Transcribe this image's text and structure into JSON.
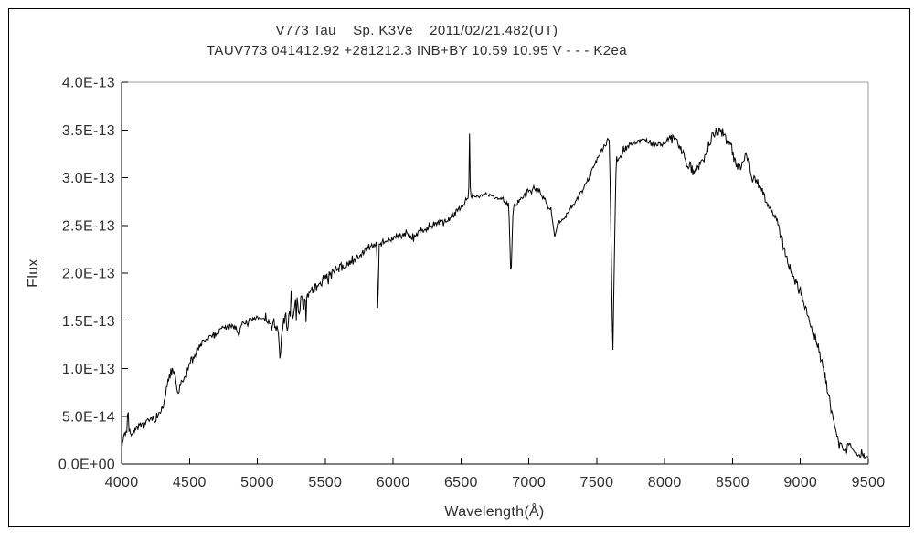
{
  "titles": {
    "line1": "V773 Tau    Sp. K3Ve    2011/02/21.482(UT)",
    "line2": "TAUV773 041412.92 +281212.3 INB+BY 10.59 10.95 V - - - K2ea"
  },
  "colors": {
    "spectrum_line": "#000000",
    "axis_black": "#000000",
    "frame_gray": "#9c9c9c",
    "text": "#2e2e2e",
    "background": "#ffffff"
  },
  "chart_data": {
    "type": "line",
    "title": "V773 Tau  Sp. K3Ve  2011/02/21.482(UT)",
    "subtitle": "TAUV773 041412.92 +281212.3 INB+BY 10.59 10.95 V - - - K2ea",
    "xlabel": "Wavelength(Å)",
    "ylabel": "Flux",
    "xlim": [
      4000,
      9500
    ],
    "ylim": [
      0,
      4e-13
    ],
    "grid": false,
    "legend": "none",
    "x_ticks": [
      4000,
      4500,
      5000,
      5500,
      6000,
      6500,
      7000,
      7500,
      8000,
      8500,
      9000,
      9500
    ],
    "y_ticks": [
      {
        "value": 0.0,
        "label": "0.0E+00"
      },
      {
        "value": 0.5,
        "label": "5.0E-14"
      },
      {
        "value": 1.0,
        "label": "1.0E-13"
      },
      {
        "value": 1.5,
        "label": "1.5E-13"
      },
      {
        "value": 2.0,
        "label": "2.0E-13"
      },
      {
        "value": 2.5,
        "label": "2.5E-13"
      },
      {
        "value": 3.0,
        "label": "3.0E-13"
      },
      {
        "value": 3.5,
        "label": "3.5E-13"
      },
      {
        "value": 4.0,
        "label": "4.0E-13"
      }
    ],
    "flux_scale": 1e-13,
    "envelope": [
      [
        4000,
        0.15
      ],
      [
        4015,
        0.3
      ],
      [
        4035,
        0.33
      ],
      [
        4060,
        0.33
      ],
      [
        4080,
        0.32
      ],
      [
        4100,
        0.36
      ],
      [
        4130,
        0.38
      ],
      [
        4160,
        0.42
      ],
      [
        4200,
        0.46
      ],
      [
        4240,
        0.47
      ],
      [
        4280,
        0.52
      ],
      [
        4310,
        0.62
      ],
      [
        4340,
        0.85
      ],
      [
        4365,
        0.97
      ],
      [
        4390,
        0.95
      ],
      [
        4415,
        0.72
      ],
      [
        4440,
        0.84
      ],
      [
        4470,
        0.92
      ],
      [
        4500,
        1.05
      ],
      [
        4540,
        1.15
      ],
      [
        4580,
        1.24
      ],
      [
        4620,
        1.3
      ],
      [
        4660,
        1.34
      ],
      [
        4700,
        1.37
      ],
      [
        4740,
        1.41
      ],
      [
        4780,
        1.44
      ],
      [
        4830,
        1.45
      ],
      [
        4861,
        1.38
      ],
      [
        4890,
        1.46
      ],
      [
        4930,
        1.49
      ],
      [
        4970,
        1.51
      ],
      [
        5010,
        1.53
      ],
      [
        5050,
        1.52
      ],
      [
        5090,
        1.48
      ],
      [
        5130,
        1.42
      ],
      [
        5160,
        1.38
      ],
      [
        5200,
        1.47
      ],
      [
        5240,
        1.56
      ],
      [
        5280,
        1.62
      ],
      [
        5320,
        1.68
      ],
      [
        5360,
        1.74
      ],
      [
        5400,
        1.8
      ],
      [
        5450,
        1.88
      ],
      [
        5500,
        1.95
      ],
      [
        5550,
        2.0
      ],
      [
        5600,
        2.05
      ],
      [
        5650,
        2.08
      ],
      [
        5700,
        2.12
      ],
      [
        5750,
        2.18
      ],
      [
        5800,
        2.24
      ],
      [
        5850,
        2.29
      ],
      [
        5900,
        2.32
      ],
      [
        5950,
        2.33
      ],
      [
        6000,
        2.36
      ],
      [
        6050,
        2.4
      ],
      [
        6100,
        2.42
      ],
      [
        6150,
        2.38
      ],
      [
        6200,
        2.44
      ],
      [
        6250,
        2.47
      ],
      [
        6300,
        2.5
      ],
      [
        6350,
        2.52
      ],
      [
        6400,
        2.55
      ],
      [
        6450,
        2.62
      ],
      [
        6500,
        2.7
      ],
      [
        6540,
        2.77
      ],
      [
        6580,
        2.8
      ],
      [
        6620,
        2.81
      ],
      [
        6660,
        2.82
      ],
      [
        6700,
        2.82
      ],
      [
        6750,
        2.8
      ],
      [
        6800,
        2.77
      ],
      [
        6850,
        2.72
      ],
      [
        6900,
        2.7
      ],
      [
        6950,
        2.8
      ],
      [
        7000,
        2.86
      ],
      [
        7040,
        2.9
      ],
      [
        7080,
        2.84
      ],
      [
        7120,
        2.76
      ],
      [
        7160,
        2.66
      ],
      [
        7200,
        2.55
      ],
      [
        7240,
        2.55
      ],
      [
        7280,
        2.62
      ],
      [
        7320,
        2.7
      ],
      [
        7360,
        2.79
      ],
      [
        7400,
        2.89
      ],
      [
        7440,
        3.0
      ],
      [
        7480,
        3.12
      ],
      [
        7520,
        3.24
      ],
      [
        7560,
        3.34
      ],
      [
        7590,
        3.4
      ],
      [
        7620,
        3.32
      ],
      [
        7650,
        3.18
      ],
      [
        7680,
        3.22
      ],
      [
        7710,
        3.3
      ],
      [
        7750,
        3.35
      ],
      [
        7800,
        3.38
      ],
      [
        7850,
        3.4
      ],
      [
        7900,
        3.36
      ],
      [
        7950,
        3.34
      ],
      [
        8000,
        3.36
      ],
      [
        8050,
        3.44
      ],
      [
        8090,
        3.4
      ],
      [
        8130,
        3.28
      ],
      [
        8170,
        3.15
      ],
      [
        8210,
        3.05
      ],
      [
        8250,
        3.14
      ],
      [
        8300,
        3.24
      ],
      [
        8350,
        3.44
      ],
      [
        8400,
        3.5
      ],
      [
        8440,
        3.45
      ],
      [
        8480,
        3.35
      ],
      [
        8520,
        3.18
      ],
      [
        8560,
        3.12
      ],
      [
        8600,
        3.25
      ],
      [
        8640,
        3.05
      ],
      [
        8690,
        2.92
      ],
      [
        8740,
        2.78
      ],
      [
        8790,
        2.65
      ],
      [
        8840,
        2.5
      ],
      [
        8880,
        2.25
      ],
      [
        8920,
        2.05
      ],
      [
        8960,
        1.92
      ],
      [
        9000,
        1.8
      ],
      [
        9040,
        1.62
      ],
      [
        9080,
        1.42
      ],
      [
        9120,
        1.28
      ],
      [
        9160,
        1.05
      ],
      [
        9200,
        0.78
      ],
      [
        9240,
        0.48
      ],
      [
        9280,
        0.25
      ],
      [
        9320,
        0.15
      ],
      [
        9360,
        0.22
      ],
      [
        9400,
        0.12
      ],
      [
        9440,
        0.1
      ],
      [
        9470,
        0.08
      ],
      [
        9500,
        0.05
      ]
    ],
    "features": [
      {
        "name": "emission-spike-4047",
        "kind": "emission",
        "center": 4047,
        "width": 14,
        "value": 0.68
      },
      {
        "name": "absorption-5168",
        "kind": "absorption",
        "center": 5168,
        "width": 26,
        "value": 1.05
      },
      {
        "name": "absorption-Na-D-5890",
        "kind": "absorption",
        "center": 5888,
        "width": 18,
        "value": 1.48
      },
      {
        "name": "emission-H-alpha-6563",
        "kind": "emission",
        "center": 6563,
        "width": 14,
        "value": 3.46
      },
      {
        "name": "absorption-O2-B-6870",
        "kind": "absorption",
        "center": 6868,
        "width": 34,
        "value": 1.9
      },
      {
        "name": "absorption-H2O-7200",
        "kind": "absorption",
        "center": 7190,
        "width": 55,
        "value": 2.38
      },
      {
        "name": "absorption-O2-A-7620",
        "kind": "absorption",
        "center": 7618,
        "width": 52,
        "value": 1.1
      }
    ],
    "noise_segments": [
      [
        4000,
        4300,
        0.05
      ],
      [
        4300,
        4550,
        0.06
      ],
      [
        4550,
        5100,
        0.05
      ],
      [
        5100,
        5450,
        0.13
      ],
      [
        5450,
        5750,
        0.07
      ],
      [
        5750,
        6450,
        0.05
      ],
      [
        6450,
        7550,
        0.04
      ],
      [
        7550,
        8100,
        0.035
      ],
      [
        8100,
        8550,
        0.07
      ],
      [
        8550,
        8700,
        0.1
      ],
      [
        8700,
        9250,
        0.06
      ],
      [
        9250,
        9500,
        0.035
      ]
    ],
    "noise_seed": 7,
    "sample_step_angstrom": 5.5
  }
}
